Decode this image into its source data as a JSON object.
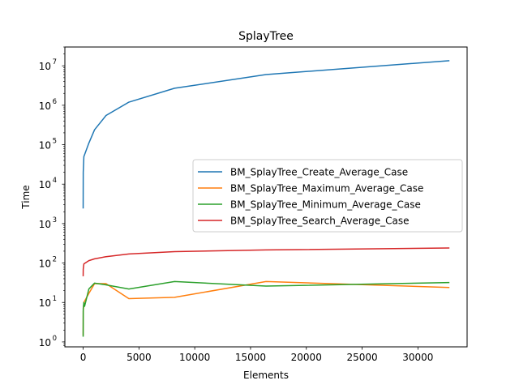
{
  "chart_data": {
    "type": "line",
    "title": "SplayTree",
    "xlabel": "Elements",
    "ylabel": "Time",
    "xlim": [
      -1638,
      34406
    ],
    "ylim": [
      0.75,
      30000000
    ],
    "yscale": "log",
    "grid": false,
    "legend_position": "center-right",
    "x_ticks": [
      0,
      5000,
      10000,
      15000,
      20000,
      25000,
      30000
    ],
    "y_ticks": [
      {
        "value": 1,
        "base": "10",
        "exp": "0"
      },
      {
        "value": 10,
        "base": "10",
        "exp": "1"
      },
      {
        "value": 100,
        "base": "10",
        "exp": "2"
      },
      {
        "value": 1000,
        "base": "10",
        "exp": "3"
      },
      {
        "value": 10000,
        "base": "10",
        "exp": "4"
      },
      {
        "value": 100000,
        "base": "10",
        "exp": "5"
      },
      {
        "value": 1000000,
        "base": "10",
        "exp": "6"
      },
      {
        "value": 10000000,
        "base": "10",
        "exp": "7"
      }
    ],
    "series": [
      {
        "name": "BM_SplayTree_Create_Average_Case",
        "color": "#1f77b4",
        "x": [
          1,
          8,
          64,
          512,
          1024,
          2048,
          4096,
          8192,
          16384,
          32768
        ],
        "y": [
          2500,
          20000,
          50000,
          110000,
          240000,
          550000,
          1200000,
          2700000,
          6000000,
          13500000
        ]
      },
      {
        "name": "BM_SplayTree_Maximum_Average_Case",
        "color": "#ff7f0e",
        "x": [
          1,
          8,
          64,
          512,
          1024,
          2048,
          4096,
          8192,
          16384,
          32768
        ],
        "y": [
          1.5,
          6,
          10,
          17,
          30,
          30,
          12.5,
          13.5,
          34,
          24
        ]
      },
      {
        "name": "BM_SplayTree_Minimum_Average_Case",
        "color": "#2ca02c",
        "x": [
          1,
          8,
          64,
          128,
          512,
          1024,
          2048,
          4096,
          8192,
          16384,
          32768
        ],
        "y": [
          1.4,
          7,
          10,
          8,
          22,
          31,
          28,
          22,
          34,
          26,
          32
        ]
      },
      {
        "name": "BM_SplayTree_Search_Average_Case",
        "color": "#d62728",
        "x": [
          1,
          8,
          64,
          512,
          1024,
          2048,
          4096,
          8192,
          16384,
          32768
        ],
        "y": [
          48,
          70,
          95,
          115,
          128,
          145,
          170,
          195,
          215,
          240
        ]
      }
    ]
  }
}
